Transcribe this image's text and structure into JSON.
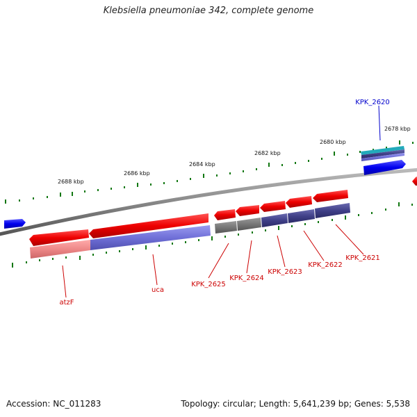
{
  "title": "Klebsiella pneumoniae 342, complete genome",
  "footer": {
    "accession": "Accession: NC_011283",
    "summary": "Topology: circular; Length: 5,641,239 bp; Genes: 5,538"
  },
  "ticks": [
    {
      "label": "2688 kbp"
    },
    {
      "label": "2686 kbp"
    },
    {
      "label": "2684 kbp"
    },
    {
      "label": "2682 kbp"
    },
    {
      "label": "2680 kbp"
    },
    {
      "label": "2678 kbp"
    }
  ],
  "genes": [
    {
      "name": "KPK_2620",
      "color": "#0000cc"
    },
    {
      "name": "KPK_2621",
      "color": "#cc0000"
    },
    {
      "name": "KPK_2622",
      "color": "#cc0000"
    },
    {
      "name": "KPK_2623",
      "color": "#cc0000"
    },
    {
      "name": "KPK_2624",
      "color": "#cc0000"
    },
    {
      "name": "KPK_2625",
      "color": "#cc0000"
    },
    {
      "name": "uca",
      "color": "#cc0000"
    },
    {
      "name": "atzF",
      "color": "#cc0000"
    }
  ],
  "colors": {
    "forward_cds": "#0000ee",
    "reverse_cds": "#ee0000",
    "cog_pink": "#ee8888",
    "cog_purple": "#7070d8",
    "cog_gray": "#777777",
    "cog_navy": "#404088",
    "cog_teal": "#22aabb",
    "backbone": "#888888",
    "tick": "#117711"
  }
}
